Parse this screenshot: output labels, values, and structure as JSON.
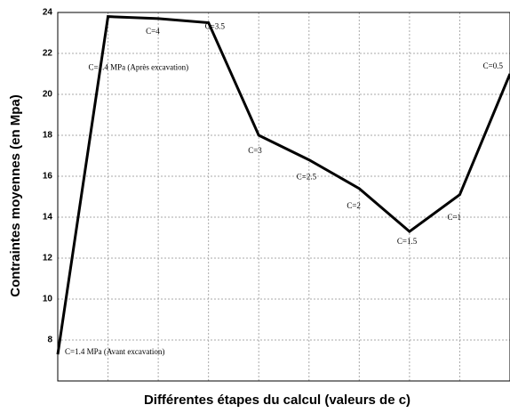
{
  "chart_data": {
    "type": "line",
    "xlabel": "Différentes étapes du calcul (valeurs de c)",
    "ylabel": "Contraintes moyennes (en Mpa)",
    "categories": [
      "C=1.4 MPa  (Avant excavation)",
      "C=1.4 MPa (Après excavation)",
      "C=4",
      "C=3.5",
      "C=3",
      "C=2.5",
      "C=2",
      "C=1.5",
      "C=1",
      "C=0.5"
    ],
    "values": [
      7.3,
      23.8,
      23.7,
      23.5,
      18.0,
      16.8,
      15.4,
      13.3,
      15.1,
      21.0
    ],
    "color": "#000000",
    "ylim": [
      6,
      24
    ],
    "yticks": [
      8,
      10,
      12,
      14,
      16,
      18,
      20,
      22,
      24
    ],
    "grid": true
  }
}
